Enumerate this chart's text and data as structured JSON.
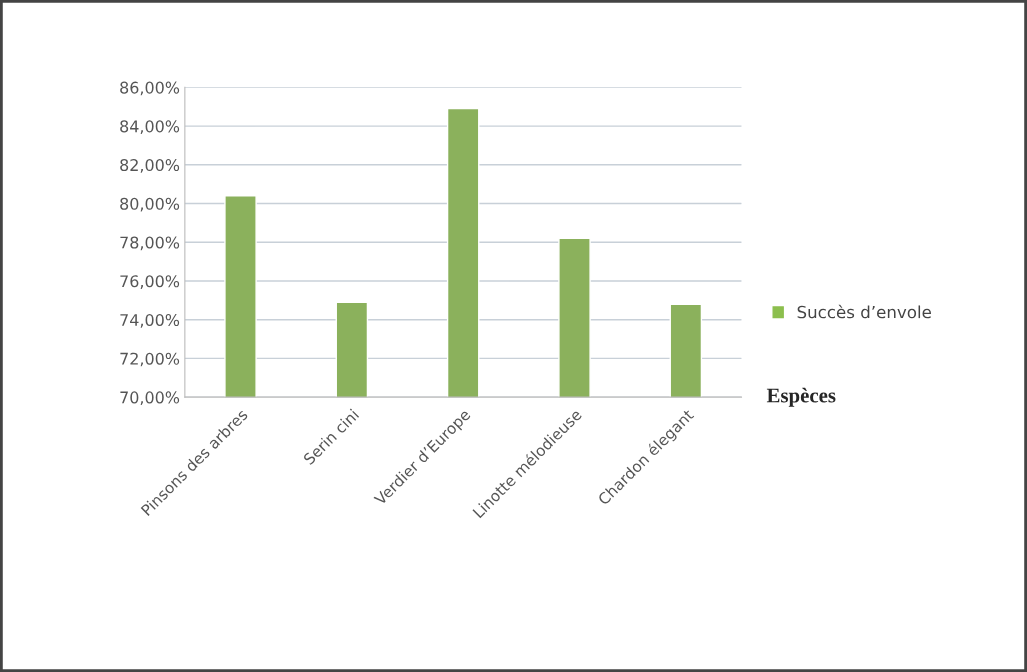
{
  "chart_data": {
    "type": "bar",
    "xlabel": "Espèces",
    "categories": [
      "Pinsons des arbres",
      "Serin cini",
      "Verdier d’Europe",
      "Linotte mélodieuse",
      "Chardon élegant"
    ],
    "series": [
      {
        "name": "Succès d’envole",
        "color": "#8cbf4e",
        "values": [
          80.4,
          74.9,
          84.9,
          78.2,
          74.8
        ]
      }
    ],
    "ylim": [
      70,
      86
    ],
    "yticks": [
      {
        "value": 70,
        "label": "70,00%"
      },
      {
        "value": 72,
        "label": "72,00%"
      },
      {
        "value": 74,
        "label": "74,00%"
      },
      {
        "value": 76,
        "label": "76,00%"
      },
      {
        "value": 78,
        "label": "78,00%"
      },
      {
        "value": 80,
        "label": "80,00%"
      },
      {
        "value": 82,
        "label": "82,00%"
      },
      {
        "value": 84,
        "label": "84,00%"
      },
      {
        "value": 86,
        "label": "86,00%"
      }
    ],
    "grid": "y",
    "legend": "right"
  }
}
